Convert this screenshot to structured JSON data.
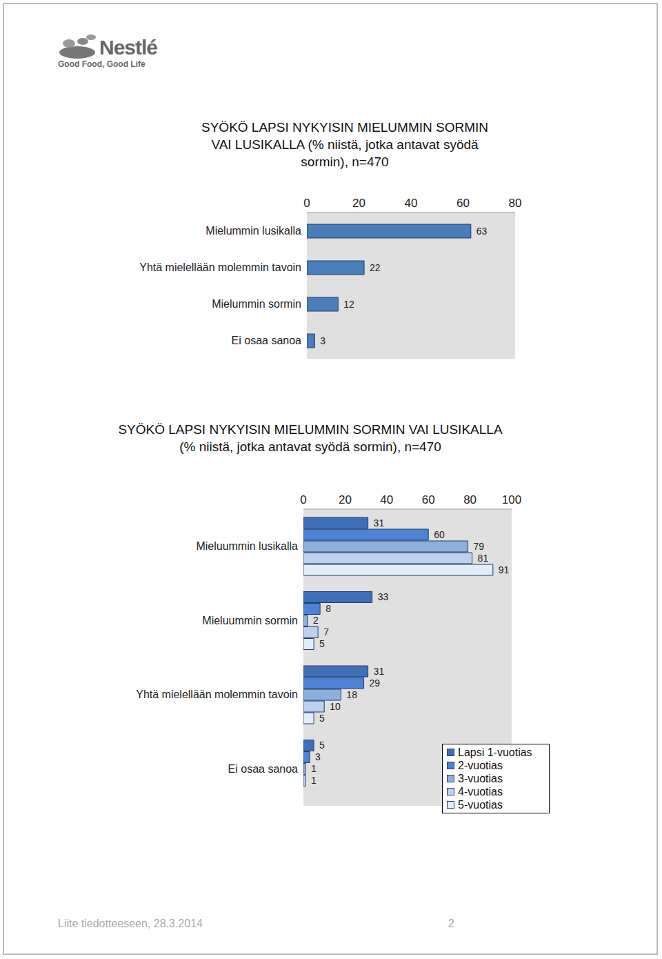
{
  "logo": {
    "brand": "Nestlé",
    "slogan": "Good Food, Good Life"
  },
  "chart_data": [
    {
      "type": "bar",
      "orientation": "horizontal",
      "title": "SYÖKÖ LAPSI NYKYISIN MIELUMMIN SORMIN VAI LUSIKALLA (% niistä, jotka antavat syödä sormin), n=470",
      "categories": [
        "Mielummin lusikalla",
        "Yhtä mielellään molemmin tavoin",
        "Mielummin sormin",
        "Ei osaa sanoa"
      ],
      "values": [
        63,
        22,
        12,
        3
      ],
      "color": "#4a7ebb",
      "xlim": [
        0,
        80
      ],
      "xticks": [
        0,
        20,
        40,
        60,
        80
      ],
      "grid": false,
      "data_labels": true
    },
    {
      "type": "bar",
      "orientation": "horizontal",
      "title": "SYÖKÖ LAPSI NYKYISIN MIELUMMIN SORMIN VAI LUSIKALLA (% niistä, jotka antavat syödä sormin), n=470",
      "categories": [
        "Mieluummin lusikalla",
        "Mieluummin sormin",
        "Yhtä mielellään molemmin tavoin",
        "Ei osaa sanoa"
      ],
      "series": [
        {
          "name": "Lapsi 1-vuotias",
          "color": "#3f6fb8",
          "values": [
            31,
            33,
            31,
            5
          ]
        },
        {
          "name": "2-vuotias",
          "color": "#4d82d4",
          "values": [
            60,
            8,
            29,
            3
          ]
        },
        {
          "name": "3-vuotias",
          "color": "#8eaedc",
          "values": [
            79,
            2,
            18,
            1
          ]
        },
        {
          "name": "4-vuotias",
          "color": "#bdd0ec",
          "values": [
            81,
            7,
            10,
            1
          ]
        },
        {
          "name": "5-vuotias",
          "color": "#e3edf9",
          "values": [
            91,
            5,
            5,
            0
          ]
        }
      ],
      "xlim": [
        0,
        100
      ],
      "xticks": [
        0,
        20,
        40,
        60,
        80,
        100
      ],
      "grid": false,
      "data_labels": true,
      "legend": "lower right"
    }
  ],
  "footer": {
    "text": "Liite tiedotteeseen, 28.3.2014",
    "page": 2
  }
}
